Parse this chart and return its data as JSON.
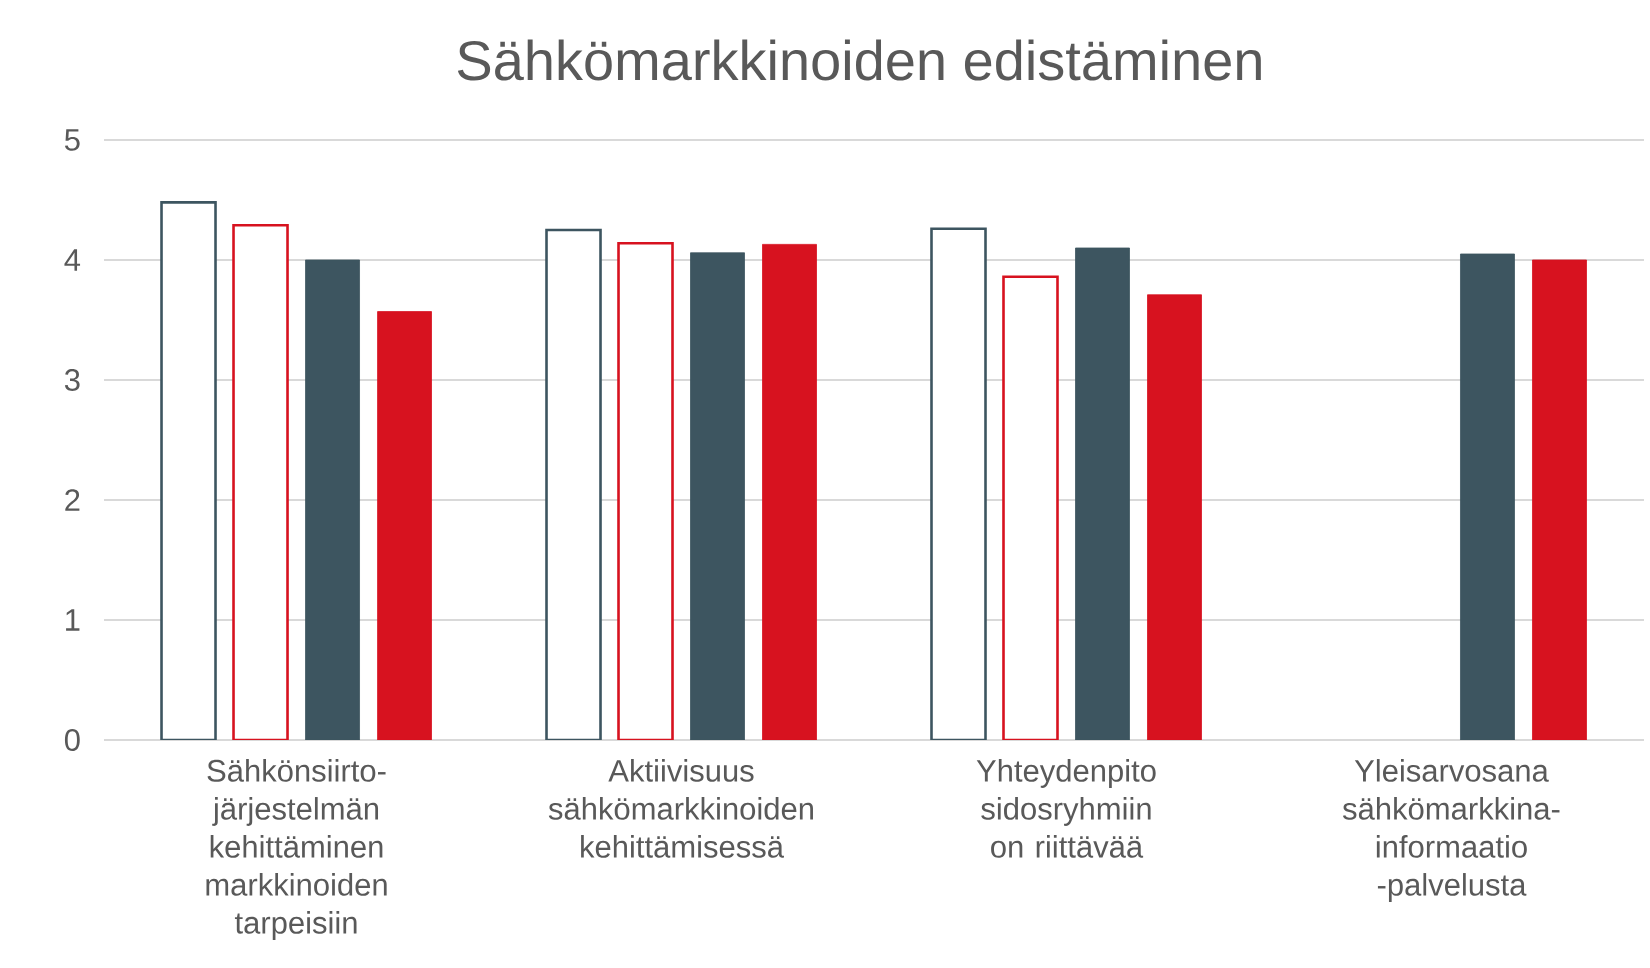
{
  "chart_data": {
    "type": "bar",
    "title": "Sähkömarkkinoiden edistäminen",
    "categories": [
      "Sähkönsiirto-järjestelmän kehittäminen markkinoiden tarpeisiin",
      "Aktiivisuus sähkömarkkinoiden kehittämisessä",
      "Yhteydenpito sidosryhmiin on riittävää",
      "Yleisarvosana sähkömarkkina-informaatio -palvelusta"
    ],
    "series": [
      {
        "color": "#ffffff",
        "values": [
          4.48,
          4.25,
          4.26,
          null
        ]
      },
      {
        "color": "#ffffff",
        "values": [
          4.29,
          4.14,
          3.86,
          null
        ]
      },
      {
        "color": "#3d5560",
        "values": [
          4.0,
          4.06,
          4.1,
          4.05
        ]
      },
      {
        "color": "#d7121f",
        "values": [
          3.57,
          4.13,
          3.71,
          4.0
        ]
      }
    ],
    "ylim": [
      0,
      5
    ],
    "yticks": [
      0,
      1,
      2,
      3,
      4,
      5
    ],
    "grid": "y"
  }
}
